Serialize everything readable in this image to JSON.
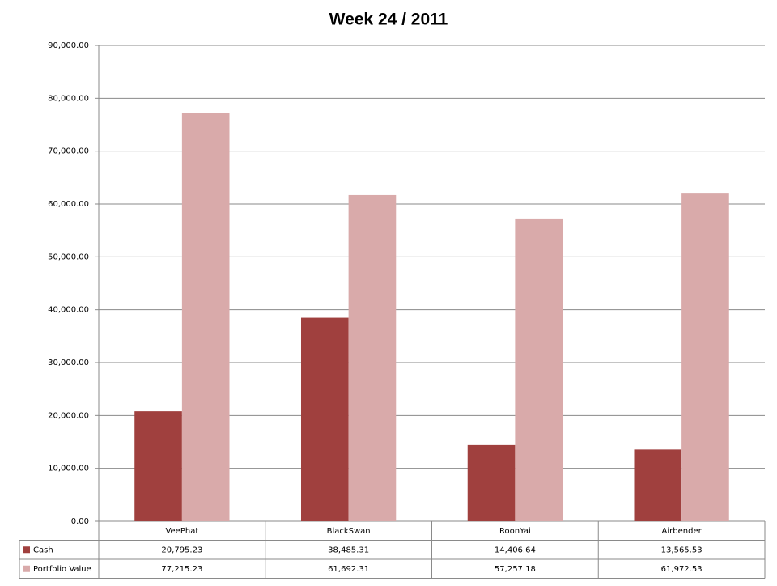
{
  "chart_data": {
    "type": "bar",
    "title": "Week 24 / 2011",
    "categories": [
      "VeePhat",
      "BlackSwan",
      "RoonYai",
      "Airbender"
    ],
    "series": [
      {
        "name": "Cash",
        "color": "#a0403e",
        "values": [
          20795.23,
          38485.31,
          14406.64,
          13565.53
        ],
        "value_labels": [
          "20,795.23",
          "38,485.31",
          "14,406.64",
          "13,565.53"
        ]
      },
      {
        "name": "Portfolio Value",
        "color": "#d9aaaa",
        "values": [
          77215.23,
          61692.31,
          57257.18,
          61972.53
        ],
        "value_labels": [
          "77,215.23",
          "61,692.31",
          "57,257.18",
          "61,972.53"
        ]
      }
    ],
    "ylim": [
      0,
      90000
    ],
    "yticks": [
      {
        "value": 0,
        "label": "0.00"
      },
      {
        "value": 10000,
        "label": "10,000.00"
      },
      {
        "value": 20000,
        "label": "20,000.00"
      },
      {
        "value": 30000,
        "label": "30,000.00"
      },
      {
        "value": 40000,
        "label": "40,000.00"
      },
      {
        "value": 50000,
        "label": "50,000.00"
      },
      {
        "value": 60000,
        "label": "60,000.00"
      },
      {
        "value": 70000,
        "label": "70,000.00"
      },
      {
        "value": 80000,
        "label": "80,000.00"
      },
      {
        "value": 90000,
        "label": "90,000.00"
      }
    ],
    "grid": true
  }
}
